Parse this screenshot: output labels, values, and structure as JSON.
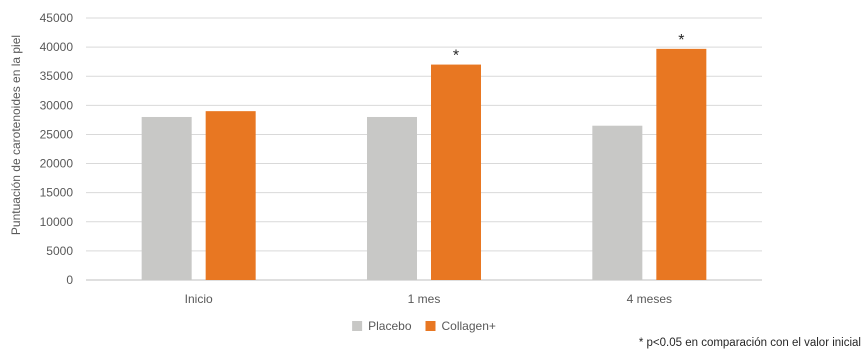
{
  "chart_data": {
    "type": "bar",
    "categories": [
      "Inicio",
      "1 mes",
      "4 meses"
    ],
    "series": [
      {
        "name": "Placebo",
        "color": "#c8c8c6",
        "values": [
          28000,
          28000,
          26500
        ]
      },
      {
        "name": "Collagen+",
        "color": "#e87722",
        "values": [
          29000,
          37000,
          39700
        ]
      }
    ],
    "significance_marks": [
      "",
      "*",
      "*"
    ],
    "ylabel": "Puntuación de carotenoides en la piel",
    "ylim": [
      0,
      45000
    ],
    "yticks": [
      0,
      5000,
      10000,
      15000,
      20000,
      25000,
      30000,
      35000,
      40000,
      45000
    ],
    "grid": true,
    "legend": "bottom-center",
    "footnote": "* p<0.05 en comparación con el valor inicial"
  }
}
